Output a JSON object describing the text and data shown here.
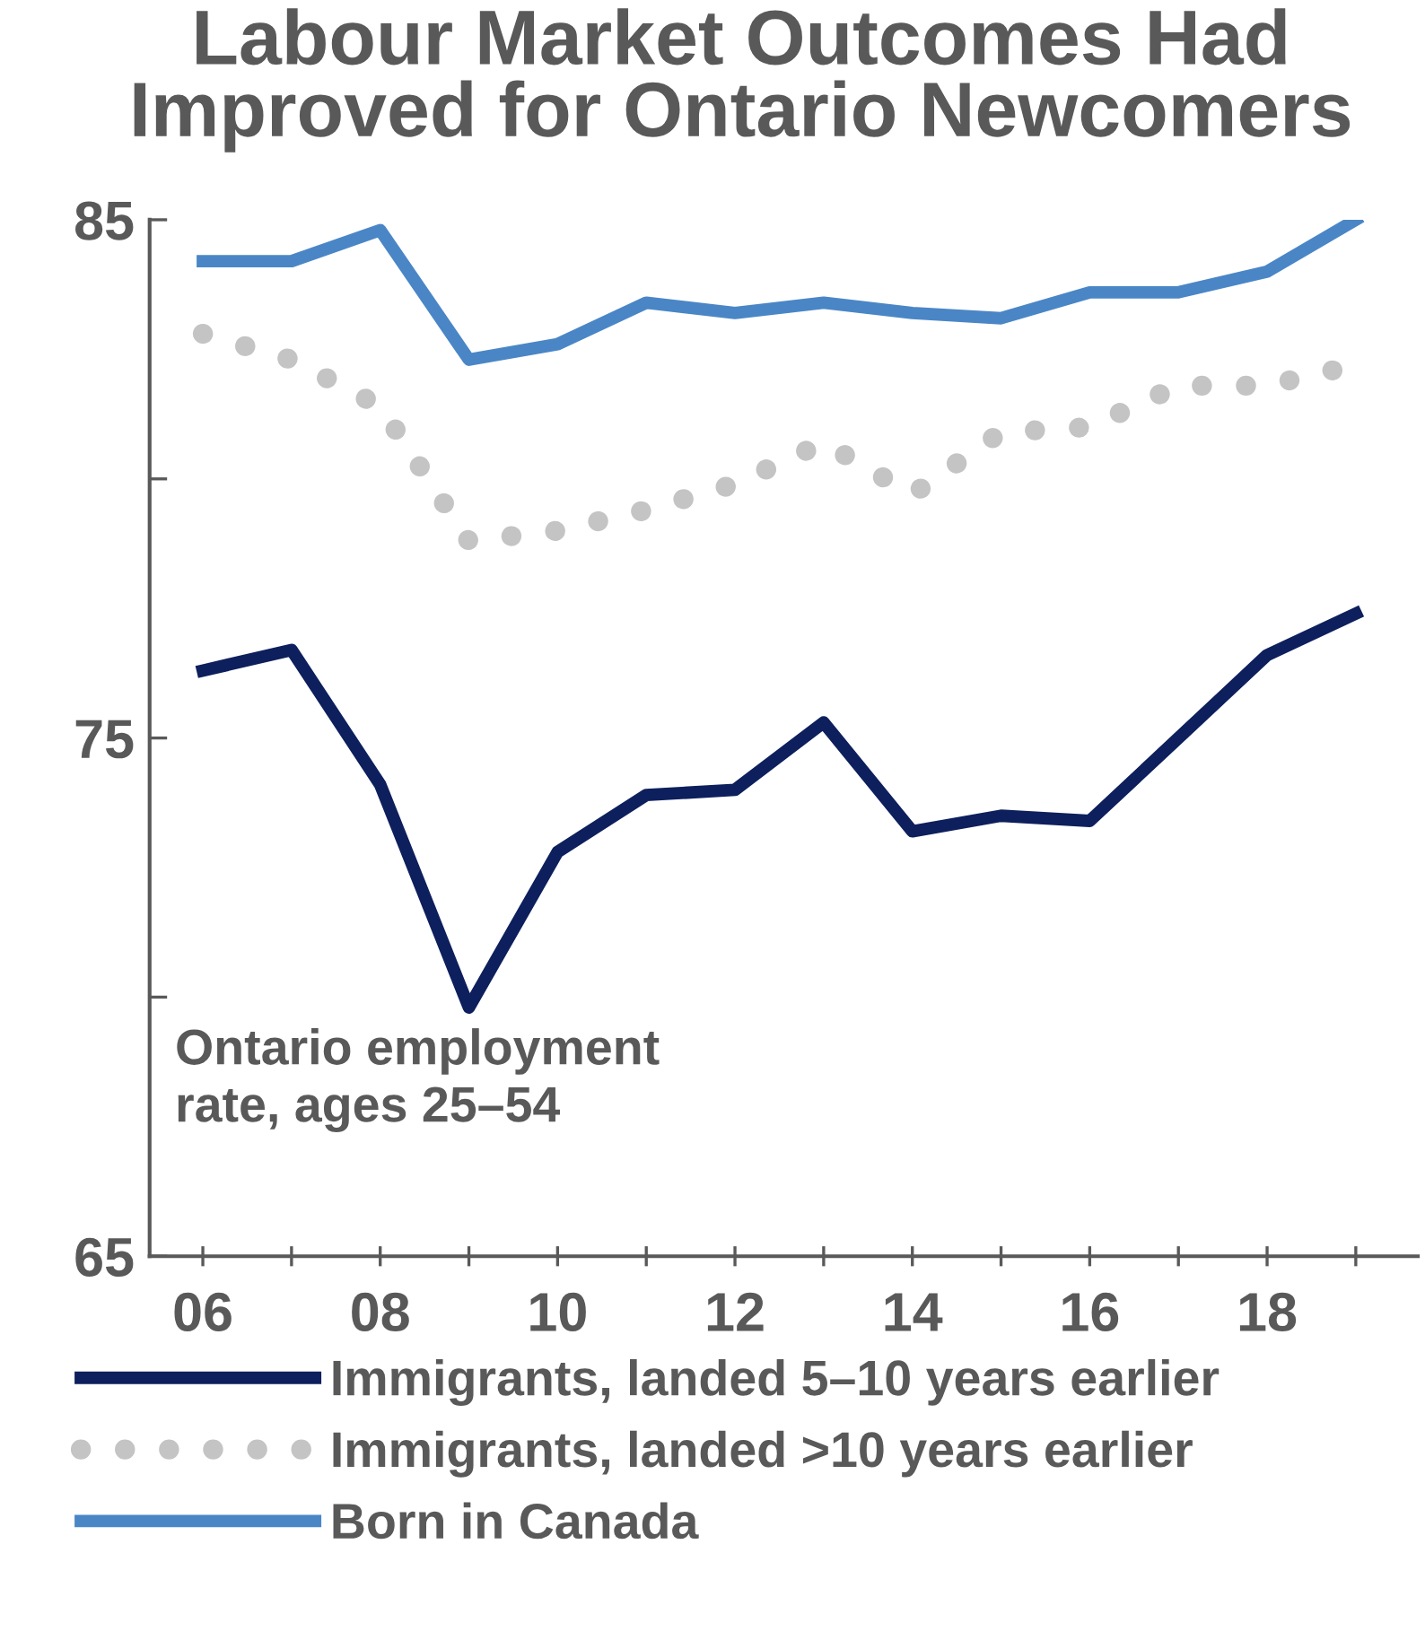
{
  "chart_data": {
    "type": "line",
    "title": "Labour Market Outcomes Had\nImproved for Ontario Newcomers",
    "x": [
      2006,
      2007,
      2008,
      2009,
      2010,
      2011,
      2012,
      2013,
      2014,
      2015,
      2016,
      2017,
      2018,
      2019
    ],
    "series": [
      {
        "name": "Immigrants, landed 5–10 years earlier",
        "color": "#0d1f5c",
        "line_style": "solid",
        "values": [
          76.3,
          76.7,
          74.1,
          69.8,
          72.8,
          73.9,
          74.0,
          75.3,
          73.2,
          73.5,
          73.4,
          75.0,
          76.6,
          77.4
        ]
      },
      {
        "name": "Immigrants, landed >10 years earlier",
        "color": "#c4c4c4",
        "line_style": "dotted",
        "values": [
          82.8,
          82.3,
          81.4,
          78.8,
          79.0,
          79.4,
          79.9,
          80.7,
          79.7,
          80.9,
          81.0,
          81.8,
          81.8,
          82.2
        ]
      },
      {
        "name": "Born in Canada",
        "color": "#4a86c6",
        "line_style": "solid",
        "values": [
          84.2,
          84.2,
          84.8,
          82.3,
          82.6,
          83.4,
          83.2,
          83.4,
          83.2,
          83.1,
          83.6,
          83.6,
          84.0,
          85.0
        ]
      }
    ],
    "xlim": [
      2005.4,
      2019.7
    ],
    "xticks": [
      {
        "value": 2006,
        "label": "06"
      },
      {
        "value": 2007,
        "label": null
      },
      {
        "value": 2008,
        "label": "08"
      },
      {
        "value": 2009,
        "label": null
      },
      {
        "value": 2010,
        "label": "10"
      },
      {
        "value": 2011,
        "label": null
      },
      {
        "value": 2012,
        "label": "12"
      },
      {
        "value": 2013,
        "label": null
      },
      {
        "value": 2014,
        "label": "14"
      },
      {
        "value": 2015,
        "label": null
      },
      {
        "value": 2016,
        "label": "16"
      },
      {
        "value": 2017,
        "label": null
      },
      {
        "value": 2018,
        "label": "18"
      },
      {
        "value": 2019,
        "label": null
      }
    ],
    "ylim": [
      65,
      85
    ],
    "yticks": [
      65,
      {
        "value": 70,
        "label": null
      },
      75,
      {
        "value": 80,
        "label": null
      },
      85
    ],
    "annotations": [
      "Ontario employment\nrate, ages 25–54"
    ],
    "grid": false,
    "legend": "bottom",
    "marker": "none"
  }
}
